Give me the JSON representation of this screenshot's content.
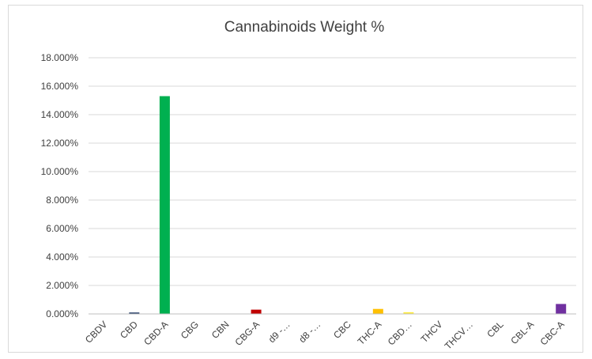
{
  "chart_data": {
    "type": "bar",
    "title": "Cannabinoids Weight %",
    "xlabel": "",
    "ylabel": "",
    "categories": [
      "CBDV",
      "CBD",
      "CBD-A",
      "CBG",
      "CBN",
      "CBG-A",
      "d9 -…",
      "d8 -…",
      "CBC",
      "THC-A",
      "CBD…",
      "THCV",
      "THCV…",
      "CBL",
      "CBL-A",
      "CBC-A"
    ],
    "values": [
      0,
      0.1,
      15.3,
      0,
      0,
      0.3,
      0,
      0,
      0,
      0.35,
      0.12,
      0,
      0,
      0,
      0,
      0.7
    ],
    "colors": [
      "#4472c4",
      "#1f3864",
      "#00b050",
      "#a5a5a5",
      "#ed7d31",
      "#c00000",
      "#5b9bd5",
      "#70ad47",
      "#7f7f7f",
      "#ffc000",
      "#ffeb3b",
      "#264478",
      "#9e480e",
      "#636363",
      "#997300",
      "#7030a0"
    ],
    "y_ticks": [
      0,
      2,
      4,
      6,
      8,
      10,
      12,
      14,
      16,
      18
    ],
    "y_tick_labels": [
      "0.000%",
      "2.000%",
      "4.000%",
      "6.000%",
      "8.000%",
      "10.000%",
      "12.000%",
      "14.000%",
      "16.000%",
      "18.000%"
    ],
    "ylim": [
      0,
      18
    ],
    "grid": true,
    "legend": "none"
  }
}
